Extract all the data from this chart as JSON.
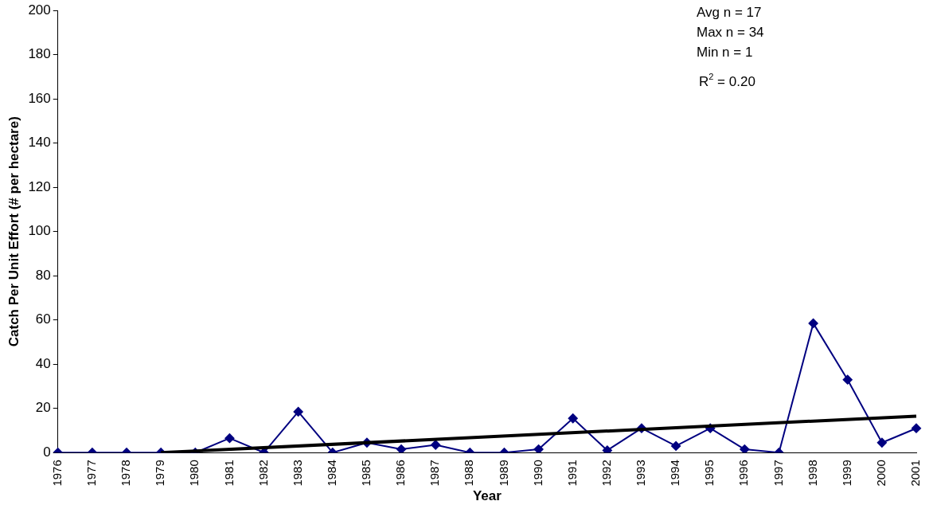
{
  "chart_data": {
    "type": "line",
    "xlabel": "Year",
    "ylabel": "Catch Per Unit Effort (# per hectare)",
    "categories": [
      "1976",
      "1977",
      "1978",
      "1979",
      "1980",
      "1981",
      "1982",
      "1983",
      "1984",
      "1985",
      "1986",
      "1987",
      "1988",
      "1989",
      "1990",
      "1991",
      "1992",
      "1993",
      "1994",
      "1995",
      "1996",
      "1997",
      "1998",
      "1999",
      "2000",
      "2001"
    ],
    "series": [
      {
        "color": "#000080",
        "marker": "diamond",
        "values": [
          0,
          0,
          0,
          0,
          0,
          6.5,
          0,
          18.5,
          0,
          4.5,
          1.5,
          3.5,
          0,
          0,
          1.5,
          15.5,
          1,
          11,
          3,
          11,
          1.5,
          0,
          58.5,
          33,
          4.5,
          11
        ]
      },
      {
        "type": "line",
        "color": "#000000",
        "marker": "none",
        "values": [
          null,
          null,
          null,
          0,
          null,
          null,
          null,
          null,
          null,
          null,
          null,
          null,
          null,
          null,
          null,
          null,
          null,
          null,
          null,
          null,
          null,
          null,
          null,
          null,
          null,
          16.5
        ]
      }
    ],
    "ylim": [
      0,
      200
    ],
    "yticks": [
      0,
      20,
      40,
      60,
      80,
      100,
      120,
      140,
      160,
      180,
      200
    ],
    "grid": false,
    "legend": false,
    "annotations": [
      "Avg n = 17",
      "Max n = 34",
      "Min n = 1",
      "R$^{2}$ = 0.20"
    ]
  }
}
